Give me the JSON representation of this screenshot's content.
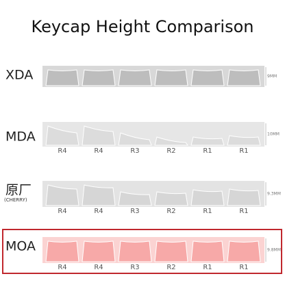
{
  "header": {
    "title": "Keycap Height Comparison"
  },
  "rows": [
    {
      "label": "XDA",
      "height": "9MM",
      "keys": []
    },
    {
      "label": "MDA",
      "height": "10MM",
      "keys": [
        "R4",
        "R4",
        "R3",
        "R2",
        "R1",
        "R1"
      ]
    },
    {
      "label": "原厂",
      "sublabel": "(CHERRY)",
      "height": "9.3MM",
      "keys": [
        "R4",
        "R4",
        "R3",
        "R2",
        "R1",
        "R1"
      ]
    },
    {
      "label": "MOA",
      "height": "9.8MM",
      "keys": [
        "R4",
        "R4",
        "R3",
        "R2",
        "R1",
        "R1"
      ]
    }
  ]
}
